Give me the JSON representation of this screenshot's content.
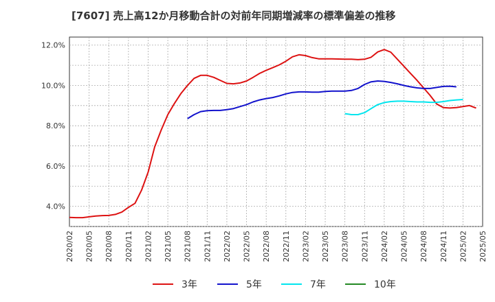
{
  "chart_data": {
    "type": "line",
    "title": "[7607]  売上高12か月移動合計の対前年同期増減率の標準偏差の推移",
    "xlabel": "",
    "ylabel": "",
    "ylim": [
      3.0,
      12.4
    ],
    "y_ticks": [
      4.0,
      6.0,
      8.0,
      10.0,
      12.0
    ],
    "y_tick_labels": [
      "4.0%",
      "6.0%",
      "8.0%",
      "10.0%",
      "12.0%"
    ],
    "x_range": [
      "2020-02",
      "2025-05"
    ],
    "x_tick_labels": [
      "2020/02",
      "2020/05",
      "2020/08",
      "2020/11",
      "2021/02",
      "2021/05",
      "2021/08",
      "2021/11",
      "2022/02",
      "2022/05",
      "2022/08",
      "2022/11",
      "2023/02",
      "2023/05",
      "2023/08",
      "2023/11",
      "2024/02",
      "2024/05",
      "2024/08",
      "2024/11",
      "2025/02",
      "2025/05"
    ],
    "grid": true,
    "legend_position": "bottom",
    "series": [
      {
        "name": "3年",
        "color": "#dd1111",
        "start": "2020-02",
        "values": [
          3.45,
          3.44,
          3.44,
          3.48,
          3.52,
          3.54,
          3.55,
          3.6,
          3.72,
          3.95,
          4.15,
          4.8,
          5.7,
          6.95,
          7.8,
          8.55,
          9.1,
          9.6,
          10.0,
          10.35,
          10.5,
          10.5,
          10.4,
          10.25,
          10.1,
          10.08,
          10.12,
          10.22,
          10.4,
          10.6,
          10.75,
          10.88,
          11.02,
          11.2,
          11.42,
          11.52,
          11.48,
          11.38,
          11.32,
          11.32,
          11.32,
          11.31,
          11.3,
          11.3,
          11.28,
          11.3,
          11.4,
          11.66,
          11.78,
          11.65,
          11.3,
          10.95,
          10.6,
          10.25,
          9.88,
          9.5,
          9.08,
          8.9,
          8.88,
          8.9,
          8.95,
          9.0,
          8.88
        ]
      },
      {
        "name": "5年",
        "color": "#1111cc",
        "start": "2021-08",
        "values": [
          8.35,
          8.55,
          8.7,
          8.75,
          8.76,
          8.76,
          8.8,
          8.85,
          8.95,
          9.05,
          9.18,
          9.28,
          9.35,
          9.4,
          9.48,
          9.58,
          9.65,
          9.68,
          9.68,
          9.67,
          9.67,
          9.7,
          9.72,
          9.72,
          9.72,
          9.75,
          9.85,
          10.05,
          10.18,
          10.22,
          10.2,
          10.15,
          10.08,
          10.0,
          9.93,
          9.88,
          9.85,
          9.85,
          9.9,
          9.95,
          9.96,
          9.93
        ]
      },
      {
        "name": "7年",
        "color": "#00e5ee",
        "start": "2023-08",
        "values": [
          8.6,
          8.55,
          8.55,
          8.65,
          8.85,
          9.05,
          9.15,
          9.2,
          9.22,
          9.22,
          9.2,
          9.18,
          9.18,
          9.16,
          9.16,
          9.2,
          9.25,
          9.28,
          9.3
        ]
      },
      {
        "name": "10年",
        "color": "#228822",
        "start": "2025-03",
        "values": []
      }
    ]
  }
}
